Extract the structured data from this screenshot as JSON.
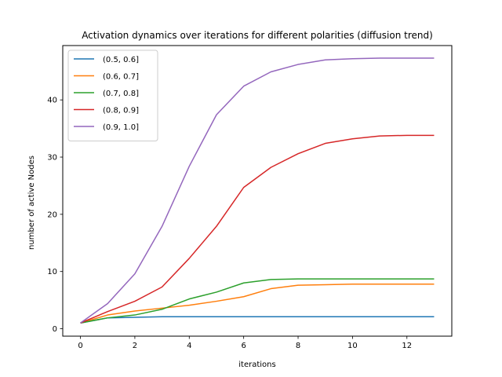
{
  "chart_data": {
    "type": "line",
    "title": "Activation dynamics over iterations for different polarities (diffusion trend)",
    "xlabel": "iterations",
    "ylabel": "number of active Nodes",
    "xlim": [
      -0.65,
      13.65
    ],
    "ylim": [
      -1.3,
      49.5
    ],
    "xticks": [
      0,
      2,
      4,
      6,
      8,
      10,
      12
    ],
    "yticks": [
      0,
      10,
      20,
      30,
      40
    ],
    "grid": false,
    "legend_position": "top-left",
    "x": [
      0,
      1,
      2,
      3,
      4,
      5,
      6,
      7,
      8,
      9,
      10,
      11,
      12,
      13
    ],
    "series": [
      {
        "name": "(0.5, 0.6]",
        "color": "#1f77b4",
        "values": [
          1.0,
          1.9,
          2.0,
          2.1,
          2.1,
          2.1,
          2.1,
          2.1,
          2.1,
          2.1,
          2.1,
          2.1,
          2.1,
          2.1
        ]
      },
      {
        "name": "(0.6, 0.7]",
        "color": "#ff7f0e",
        "values": [
          1.0,
          2.4,
          3.1,
          3.6,
          4.1,
          4.8,
          5.6,
          7.0,
          7.6,
          7.7,
          7.8,
          7.8,
          7.8,
          7.8
        ]
      },
      {
        "name": "(0.7, 0.8]",
        "color": "#2ca02c",
        "values": [
          1.0,
          1.9,
          2.4,
          3.4,
          5.2,
          6.4,
          8.0,
          8.6,
          8.7,
          8.7,
          8.7,
          8.7,
          8.7,
          8.7
        ]
      },
      {
        "name": "(0.8, 0.9]",
        "color": "#d62728",
        "values": [
          1.0,
          3.0,
          4.8,
          7.3,
          12.3,
          17.9,
          24.7,
          28.2,
          30.6,
          32.4,
          33.2,
          33.7,
          33.8,
          33.8
        ]
      },
      {
        "name": "(0.9, 1.0]",
        "color": "#9467bd",
        "values": [
          1.0,
          4.4,
          9.6,
          17.9,
          28.4,
          37.4,
          42.4,
          44.9,
          46.2,
          47.0,
          47.2,
          47.3,
          47.3,
          47.3
        ]
      }
    ]
  }
}
